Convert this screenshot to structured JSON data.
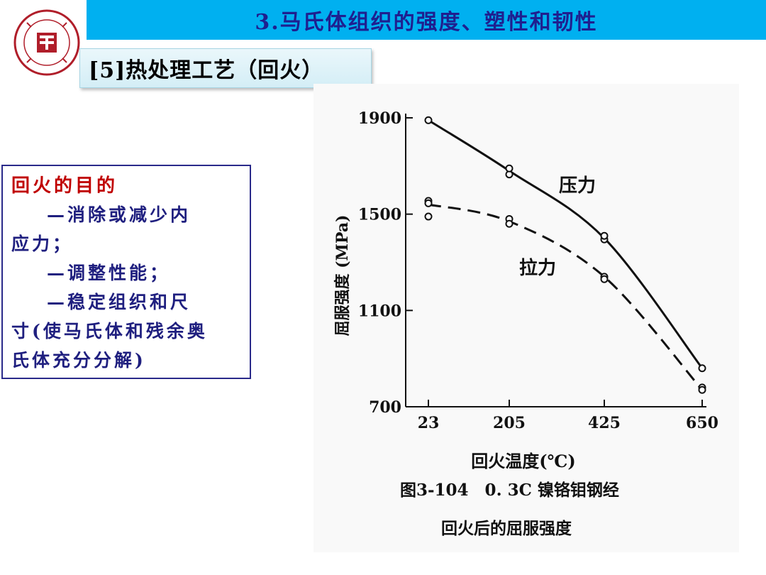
{
  "header": {
    "title": "3.马氏体组织的强度、塑性和韧性",
    "subtitle": "[5]热处理工艺（回火）"
  },
  "purpose": {
    "heading": "回火的目的",
    "line1": "—消除或减少内",
    "line1b": "应力；",
    "line2": "—调整性能；",
    "line3": "—稳定组织和尺",
    "line3b": "寸(使马氏体和残余奥",
    "line3c": "氏体充分分解)"
  },
  "chart_data": {
    "type": "line",
    "ylabel": "屈服强度 (MPa)",
    "xlabel": "回火温度(℃)",
    "x_ticks": [
      "23",
      "205",
      "425",
      "650"
    ],
    "y_ticks": [
      700,
      1100,
      1500,
      1900
    ],
    "ylim": [
      700,
      1900
    ],
    "caption_line1": "图3-104　0. 3C 镍铬钼钢经",
    "caption_line2": "回火后的屈服强度",
    "series": [
      {
        "name": "压力",
        "style": "solid",
        "values": [
          [
            23,
            1890
          ],
          [
            205,
            1680
          ],
          [
            425,
            1400
          ],
          [
            650,
            860
          ]
        ],
        "points": [
          [
            23,
            1890
          ],
          [
            205,
            1665
          ],
          [
            205,
            1690
          ],
          [
            425,
            1395
          ],
          [
            425,
            1410
          ],
          [
            650,
            860
          ]
        ]
      },
      {
        "name": "拉力",
        "style": "dashed",
        "values": [
          [
            23,
            1540
          ],
          [
            205,
            1470
          ],
          [
            425,
            1240
          ],
          [
            650,
            770
          ]
        ],
        "points": [
          [
            23,
            1555
          ],
          [
            23,
            1545
          ],
          [
            23,
            1490
          ],
          [
            205,
            1480
          ],
          [
            205,
            1460
          ],
          [
            425,
            1240
          ],
          [
            425,
            1230
          ],
          [
            650,
            780
          ],
          [
            650,
            770
          ]
        ]
      }
    ]
  },
  "colors": {
    "title_bar": "#00b0f0",
    "title_text": "#1f1f8f",
    "heading_red": "#c00000",
    "body_blue": "#1f1f7f",
    "logo_red": "#b01e2a"
  }
}
